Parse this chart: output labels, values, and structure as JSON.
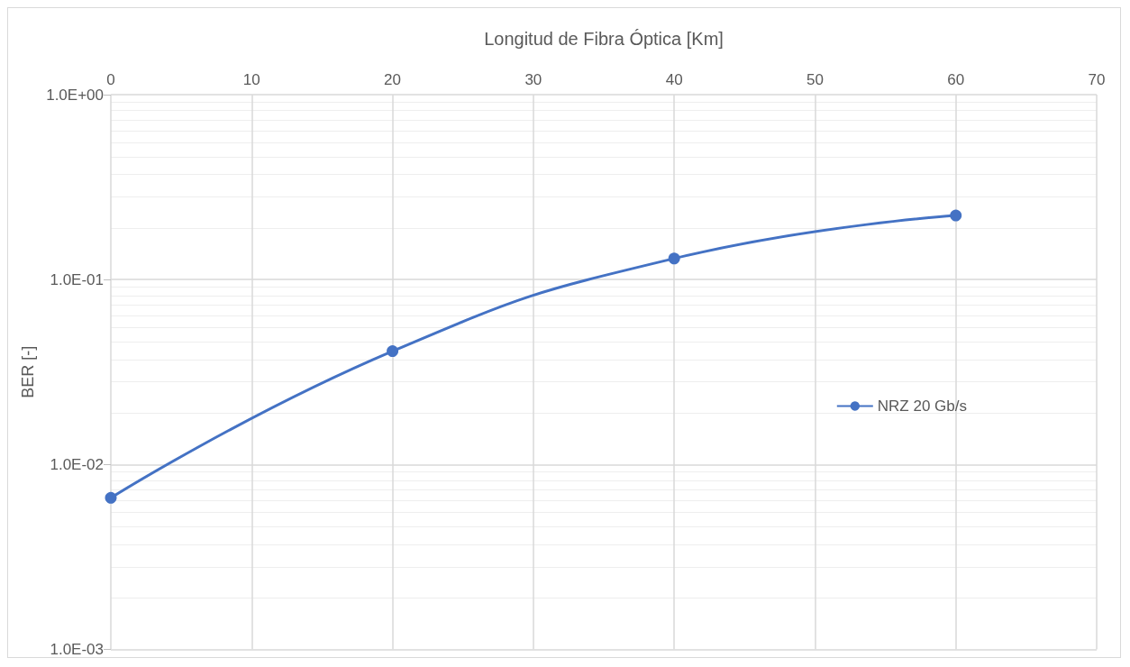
{
  "chart_data": {
    "type": "line",
    "xlabel": "Longitud de Fibra Óptica [Km]",
    "ylabel": "BER [-]",
    "series": [
      {
        "name": "NRZ 20 Gb/s",
        "color": "#4472c4",
        "x": [
          0,
          20,
          40,
          60
        ],
        "values": [
          0.0066,
          0.041,
          0.13,
          0.222
        ]
      }
    ],
    "xlim": [
      0,
      70
    ],
    "xticks": [
      0,
      10,
      20,
      30,
      40,
      50,
      60,
      70
    ],
    "ylim": [
      0.001,
      1
    ],
    "yticks": [
      {
        "value": 0.001,
        "label": "1.0E-03"
      },
      {
        "value": 0.01,
        "label": "1.0E-02"
      },
      {
        "value": 0.1,
        "label": "1.0E-01"
      },
      {
        "value": 1,
        "label": "1.0E+00"
      }
    ],
    "log": "y",
    "grid": true,
    "legend": "right",
    "marker": "circle",
    "line_style": "solid"
  }
}
